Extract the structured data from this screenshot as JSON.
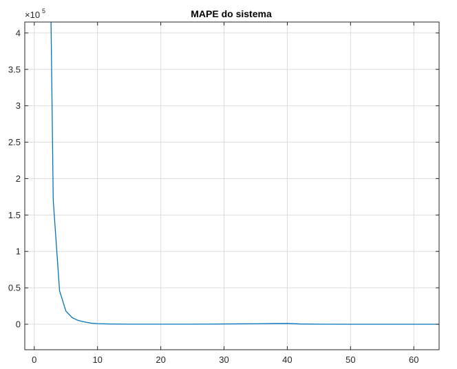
{
  "chart_data": {
    "type": "line",
    "title": "MAPE do sistema",
    "xlabel": "",
    "ylabel": "",
    "xlim": [
      -1.5,
      64
    ],
    "ylim": [
      -0.35,
      4.15
    ],
    "y_exponent_label": {
      "base": "×10",
      "exponent": "5"
    },
    "x_ticks": [
      0,
      10,
      20,
      30,
      40,
      50,
      60
    ],
    "x_tick_labels": [
      "0",
      "10",
      "20",
      "30",
      "40",
      "50",
      "60"
    ],
    "y_ticks": [
      0,
      0.5,
      1,
      1.5,
      2,
      2.5,
      3,
      3.5,
      4
    ],
    "y_tick_labels": [
      "0",
      "0.5",
      "1",
      "1.5",
      "2",
      "2.5",
      "3",
      "3.5",
      "4"
    ],
    "grid": true,
    "series": [
      {
        "color": "#0072BD",
        "x": [
          2.65,
          3,
          4,
          5,
          6,
          7,
          8,
          9,
          10,
          12,
          15,
          20,
          25,
          28,
          30,
          35,
          38,
          40,
          42,
          45,
          50,
          55,
          60,
          64
        ],
        "y": [
          4.15,
          1.7,
          0.46,
          0.18,
          0.09,
          0.05,
          0.03,
          0.015,
          0.008,
          0.003,
          0.001,
          0.001,
          0.001,
          0.002,
          0.004,
          0.007,
          0.01,
          0.011,
          0.004,
          0.001,
          0.0,
          0.0,
          0.0,
          0.0
        ]
      }
    ]
  }
}
